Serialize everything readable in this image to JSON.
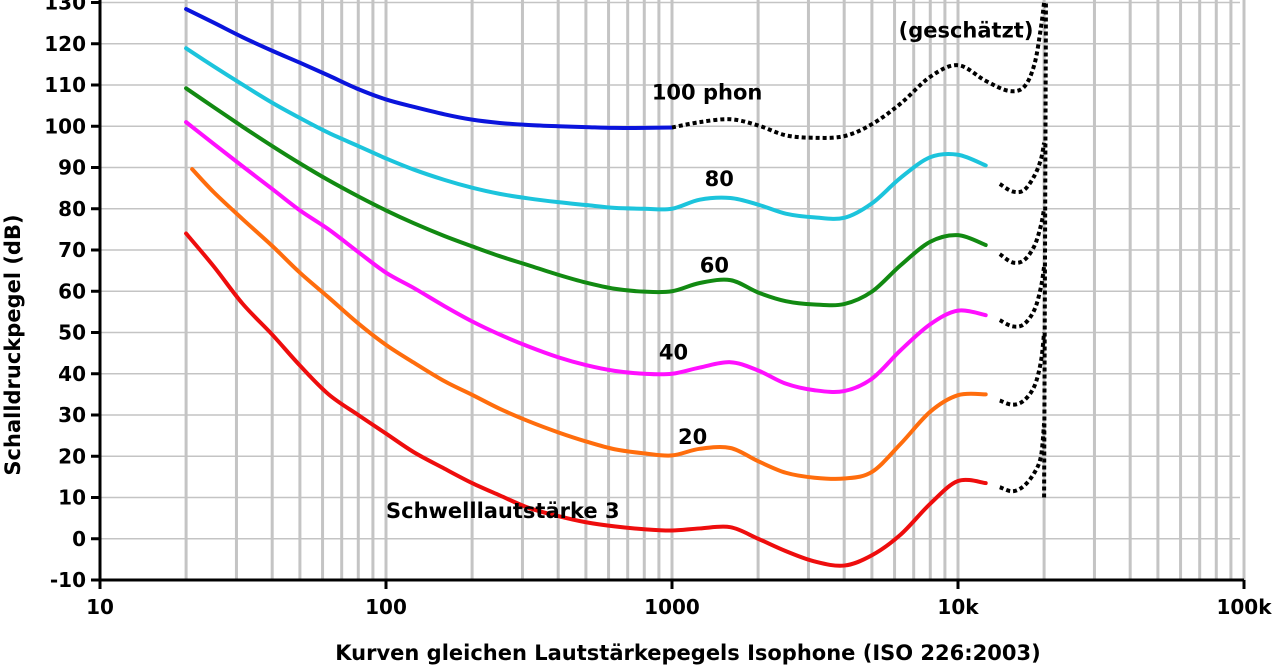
{
  "chart_data": {
    "type": "line",
    "title": "Kurven gleichen Lautstärkepegels Isophone (ISO 226:2003)",
    "xlabel": "Kurven gleichen Lautstärkepegels Isophone (ISO 226:2003)",
    "ylabel": "Schalldruckpegel (dB)",
    "x_scale": "log",
    "xlim": [
      10,
      100000
    ],
    "ylim": [
      -10,
      130
    ],
    "grid": true,
    "x_ticks": [
      {
        "value": 10,
        "label": "10"
      },
      {
        "value": 100,
        "label": "100"
      },
      {
        "value": 1000,
        "label": "1000"
      },
      {
        "value": 10000,
        "label": "10k"
      },
      {
        "value": 100000,
        "label": "100k"
      }
    ],
    "y_ticks": [
      {
        "value": 130,
        "label": "130"
      },
      {
        "value": 120,
        "label": "120"
      },
      {
        "value": 110,
        "label": "110"
      },
      {
        "value": 100,
        "label": "100"
      },
      {
        "value": 90,
        "label": "90"
      },
      {
        "value": 80,
        "label": "80"
      },
      {
        "value": 70,
        "label": "70"
      },
      {
        "value": 60,
        "label": "60"
      },
      {
        "value": 50,
        "label": "50"
      },
      {
        "value": 40,
        "label": "40"
      },
      {
        "value": 30,
        "label": "30"
      },
      {
        "value": 20,
        "label": "20"
      },
      {
        "value": 10,
        "label": "10"
      },
      {
        "value": 0,
        "label": "0"
      },
      {
        "value": -10,
        "label": "-10"
      }
    ],
    "series": [
      {
        "name": "100 phon",
        "color": "#0a14dc",
        "x": [
          20,
          25,
          31.5,
          40,
          50,
          63,
          80,
          100,
          125,
          160,
          200,
          250,
          315,
          400,
          500,
          630,
          800,
          1000
        ],
        "y": [
          128.4,
          125.1,
          121.6,
          118.3,
          115.4,
          112.3,
          109.0,
          106.5,
          104.7,
          102.9,
          101.6,
          100.8,
          100.3,
          100.0,
          99.8,
          99.6,
          99.6,
          99.7
        ]
      },
      {
        "name": "80",
        "color": "#1cc4dc",
        "x": [
          20,
          25,
          31.5,
          40,
          50,
          63,
          80,
          100,
          125,
          160,
          200,
          250,
          315,
          400,
          500,
          630,
          800,
          1000,
          1250,
          1600,
          2000,
          2500,
          3150,
          4000,
          5000,
          6300,
          8000,
          10000,
          12500
        ],
        "y": [
          118.9,
          114.5,
          110.1,
          105.7,
          102.0,
          98.4,
          95.2,
          92.2,
          89.5,
          87.0,
          85.1,
          83.6,
          82.5,
          81.6,
          80.9,
          80.2,
          80.0,
          80.0,
          82.2,
          82.6,
          81.0,
          78.8,
          77.9,
          77.8,
          81.3,
          87.5,
          92.5,
          93.1,
          90.5
        ]
      },
      {
        "name": "60",
        "color": "#128a12",
        "x": [
          20,
          25,
          31.5,
          40,
          50,
          63,
          80,
          100,
          125,
          160,
          200,
          250,
          315,
          400,
          500,
          630,
          800,
          1000,
          1250,
          1600,
          2000,
          2500,
          3150,
          4000,
          5000,
          6300,
          8000,
          10000,
          12500
        ],
        "y": [
          109.2,
          104.6,
          99.9,
          95.2,
          91.0,
          86.9,
          83.0,
          79.6,
          76.5,
          73.4,
          70.9,
          68.5,
          66.3,
          64.0,
          62.1,
          60.6,
          59.9,
          60.0,
          62.0,
          62.7,
          59.7,
          57.6,
          56.8,
          56.9,
          59.9,
          66.3,
          72.0,
          73.6,
          71.2
        ]
      },
      {
        "name": "40",
        "color": "#ff10ff",
        "x": [
          20,
          25,
          31.5,
          40,
          50,
          63,
          80,
          100,
          125,
          160,
          200,
          250,
          315,
          400,
          500,
          630,
          800,
          1000,
          1250,
          1600,
          2000,
          2500,
          3150,
          4000,
          5000,
          6300,
          8000,
          10000,
          12500
        ],
        "y": [
          101.0,
          95.7,
          90.3,
          84.8,
          79.6,
          75.0,
          69.5,
          64.5,
          60.8,
          56.4,
          52.7,
          49.5,
          46.6,
          44.0,
          42.1,
          40.7,
          40.0,
          40.0,
          41.5,
          42.8,
          40.8,
          37.6,
          36.0,
          35.8,
          38.8,
          45.7,
          52.0,
          55.3,
          54.2
        ]
      },
      {
        "name": "20",
        "color": "#ff6d0d",
        "x": [
          21,
          25,
          31.5,
          40,
          50,
          63,
          80,
          100,
          125,
          160,
          200,
          250,
          315,
          400,
          500,
          630,
          800,
          1000,
          1250,
          1600,
          2000,
          2500,
          3150,
          4000,
          5000,
          6300,
          8000,
          10000,
          12500
        ],
        "y": [
          89.6,
          84.0,
          77.5,
          71.0,
          64.5,
          58.5,
          52.2,
          47.0,
          42.7,
          38.2,
          34.9,
          31.5,
          28.5,
          25.8,
          23.6,
          21.7,
          20.7,
          20.2,
          21.8,
          22.0,
          18.8,
          16.0,
          14.8,
          14.6,
          16.2,
          23.0,
          30.8,
          34.8,
          35.0
        ]
      },
      {
        "name": "Schwelllautstärke 3",
        "color": "#ee0d0d",
        "x": [
          20,
          25,
          31.5,
          40,
          50,
          63,
          80,
          100,
          125,
          160,
          200,
          250,
          315,
          400,
          500,
          630,
          800,
          1000,
          1250,
          1600,
          2000,
          2500,
          3150,
          4000,
          5000,
          6300,
          8000,
          10000,
          12500
        ],
        "y": [
          74.0,
          66.0,
          57.0,
          49.5,
          42.0,
          35.0,
          30.0,
          25.5,
          21.0,
          17.0,
          13.5,
          10.5,
          7.5,
          5.5,
          4.0,
          3.0,
          2.3,
          2.0,
          2.5,
          2.8,
          0.0,
          -3.0,
          -5.5,
          -6.5,
          -4.0,
          1.0,
          8.5,
          14.0,
          13.5
        ]
      }
    ],
    "estimated_series": [
      {
        "name": "100 phon (geschätzt)",
        "x": [
          1000,
          1250,
          1600,
          2000,
          2500,
          3150,
          4000,
          5000,
          6300,
          8000,
          10000,
          12500,
          15000,
          17000,
          18500,
          19500,
          20000
        ],
        "y": [
          99.7,
          101.0,
          101.7,
          100.2,
          97.8,
          97.2,
          97.6,
          100.5,
          105.5,
          112.0,
          114.8,
          111.0,
          108.6,
          109.5,
          115.0,
          124.0,
          130.0
        ]
      },
      {
        "name": "80 (geschätzt)",
        "x": [
          14000,
          15500,
          17000,
          18500,
          19500,
          20000
        ],
        "y": [
          86.0,
          84.2,
          84.5,
          88.0,
          92.0,
          96.0
        ]
      },
      {
        "name": "60 (geschätzt)",
        "x": [
          14000,
          15500,
          17000,
          18500,
          19500,
          20000
        ],
        "y": [
          69.0,
          67.0,
          67.5,
          71.0,
          76.0,
          80.0
        ]
      },
      {
        "name": "40 (geschätzt)",
        "x": [
          14000,
          15500,
          17000,
          18500,
          19500,
          20000
        ],
        "y": [
          53.0,
          51.5,
          52.0,
          55.5,
          61.0,
          66.0
        ]
      },
      {
        "name": "20 (geschätzt)",
        "x": [
          14000,
          15500,
          17000,
          18500,
          19500,
          20000
        ],
        "y": [
          33.5,
          32.5,
          33.5,
          37.0,
          43.0,
          50.0
        ]
      },
      {
        "name": "Schwelle (geschätzt)",
        "x": [
          14000,
          15500,
          17000,
          18500,
          19500,
          20000
        ],
        "y": [
          12.5,
          11.5,
          12.8,
          16.0,
          20.0,
          28.0
        ]
      }
    ],
    "annotations": [
      {
        "text": "(geschätzt)",
        "x": 6200,
        "y": 121.5
      },
      {
        "text": "100 phon",
        "x": 850,
        "y": 106.5
      },
      {
        "text": "80",
        "x": 1300,
        "y": 85.5
      },
      {
        "text": "60",
        "x": 1250,
        "y": 64.5
      },
      {
        "text": "40",
        "x": 900,
        "y": 43.5
      },
      {
        "text": "20",
        "x": 1050,
        "y": 23
      },
      {
        "text": "Schwelllautstärke 3",
        "x": 100,
        "y": 5
      }
    ]
  }
}
